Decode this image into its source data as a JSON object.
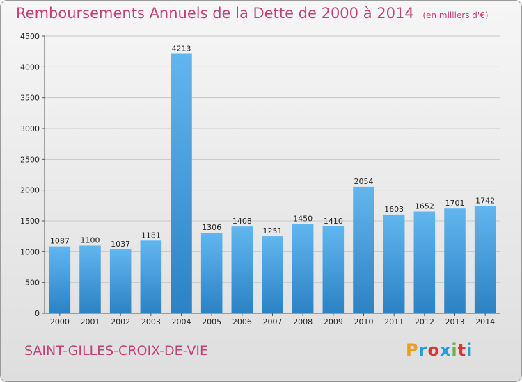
{
  "header": {
    "title": "Remboursements Annuels de la Dette de 2000 à 2014",
    "unit": "(en milliers d'€)"
  },
  "footer": {
    "town": "SAINT-GILLES-CROIX-DE-VIE"
  },
  "logo": {
    "text": "Proxiti",
    "colors": [
      "#e8a020",
      "#2c9ad8",
      "#d03a3a",
      "#2c9ad8",
      "#6ab04c",
      "#d03a3a",
      "#2c9ad8"
    ]
  },
  "colors": {
    "bar_light": "#62b6ef",
    "bar_dark": "#2b82c4",
    "grid": "#c8c8c8",
    "title": "#c2407a"
  },
  "chart_data": {
    "type": "bar",
    "title": "Remboursements Annuels de la Dette de 2000 à 2014",
    "categories": [
      "2000",
      "2001",
      "2002",
      "2003",
      "2004",
      "2005",
      "2006",
      "2007",
      "2008",
      "2009",
      "2010",
      "2011",
      "2012",
      "2013",
      "2014"
    ],
    "values": [
      1087,
      1100,
      1037,
      1181,
      4213,
      1306,
      1408,
      1251,
      1450,
      1410,
      2054,
      1603,
      1652,
      1701,
      1742
    ],
    "yticks": [
      0,
      500,
      1000,
      1500,
      2000,
      2500,
      3000,
      3500,
      4000,
      4500
    ],
    "ylim": [
      0,
      4500
    ],
    "xlabel": "",
    "ylabel": "",
    "grid": true
  }
}
